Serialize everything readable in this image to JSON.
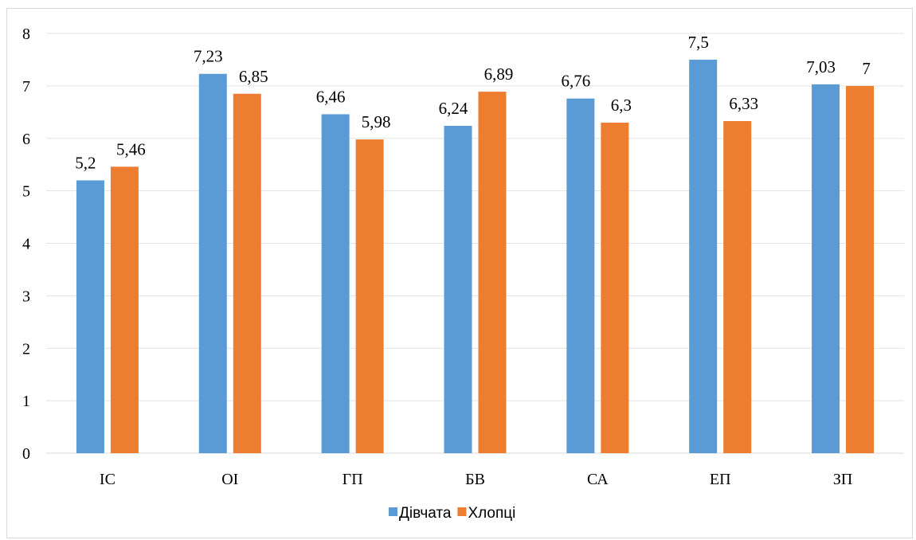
{
  "chart_data": {
    "type": "bar",
    "title": "",
    "xlabel": "",
    "ylabel": "",
    "categories": [
      "ІС",
      "ОІ",
      "ГП",
      "БВ",
      "СА",
      "ЕП",
      "ЗП"
    ],
    "series": [
      {
        "name": "Дівчата",
        "color": "#5b9bd5",
        "values": [
          5.2,
          7.23,
          6.46,
          6.24,
          6.76,
          7.5,
          7.03
        ],
        "labels": [
          "5,2",
          "7,23",
          "6,46",
          "6,24",
          "6,76",
          "7,5",
          "7,03"
        ]
      },
      {
        "name": "Хлопці",
        "color": "#ed7d31",
        "values": [
          5.46,
          6.85,
          5.98,
          6.89,
          6.3,
          6.33,
          7.0
        ],
        "labels": [
          "5,46",
          "6,85",
          "5,98",
          "6,89",
          "6,3",
          "6,33",
          "7"
        ]
      }
    ],
    "ylim": [
      0,
      8
    ],
    "yticks": [
      "0",
      "1",
      "2",
      "3",
      "4",
      "5",
      "6",
      "7",
      "8"
    ],
    "grid": true,
    "legend_position": "bottom"
  }
}
